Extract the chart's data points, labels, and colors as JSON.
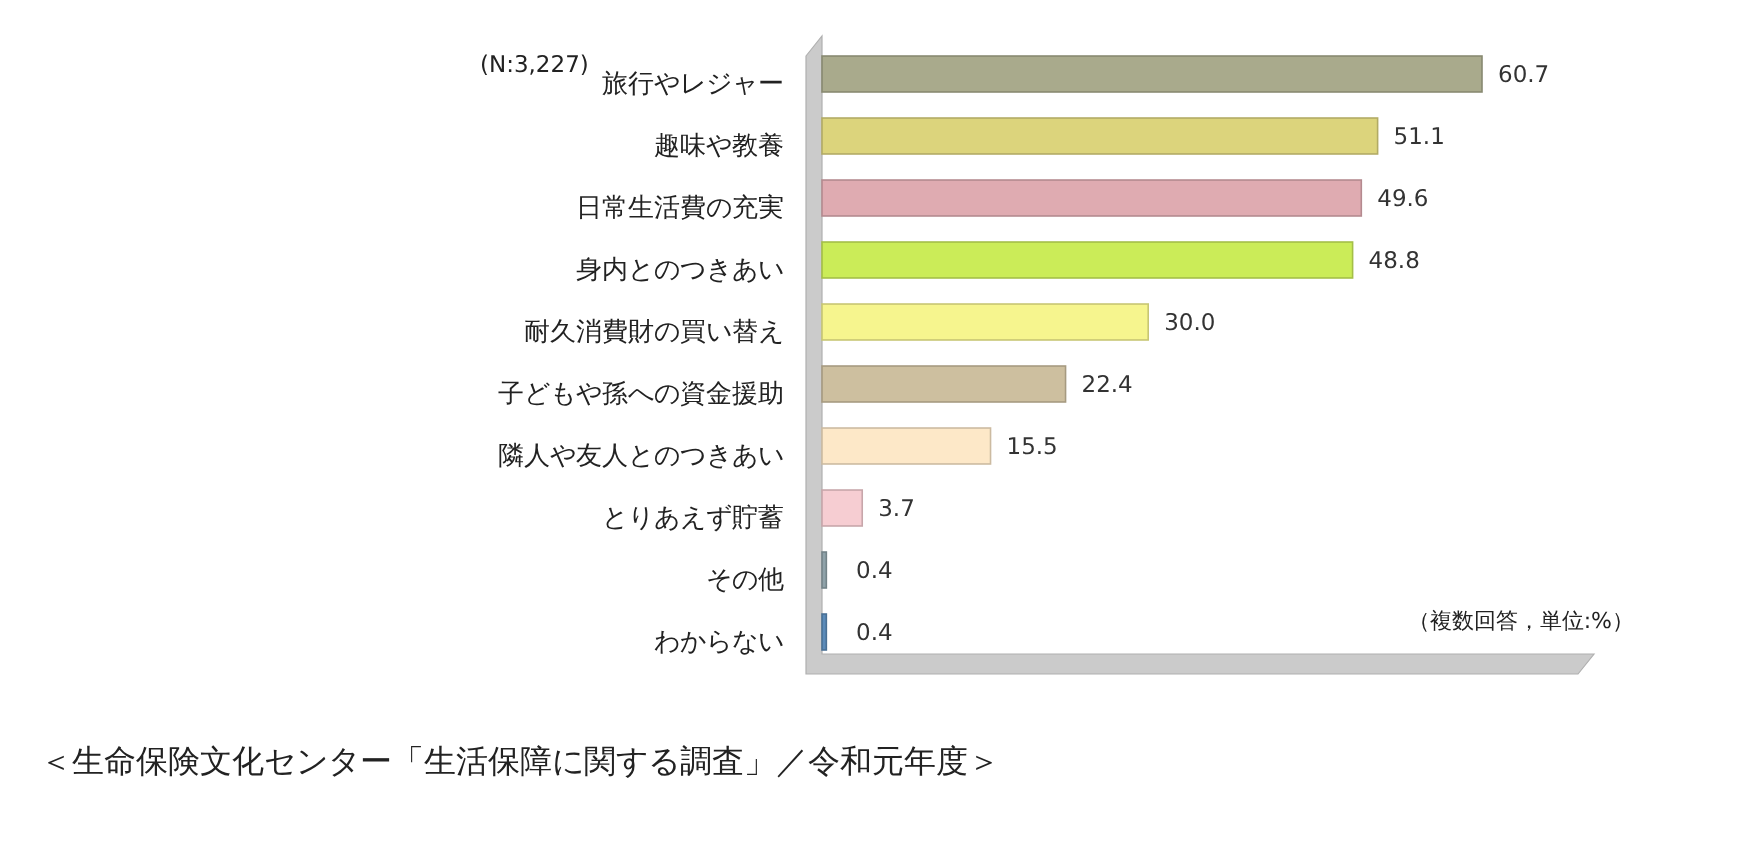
{
  "chart_data": {
    "type": "bar",
    "orientation": "horizontal",
    "categories": [
      "旅行やレジャー",
      "趣味や教養",
      "日常生活費の充実",
      "身内とのつきあい",
      "耐久消費財の買い替え",
      "子どもや孫への資金援助",
      "隣人や友人とのつきあい",
      "とりあえず貯蓄",
      "その他",
      "わからない"
    ],
    "values": [
      60.7,
      51.1,
      49.6,
      48.8,
      30.0,
      22.4,
      15.5,
      3.7,
      0.4,
      0.4
    ],
    "colors": [
      "#a9aa8c",
      "#dcd47c",
      "#dfabb1",
      "#cbec58",
      "#f6f58e",
      "#cdbf9f",
      "#fde8c8",
      "#f6cdd2",
      "#8fa2a9",
      "#5b8bb9"
    ],
    "value_labels": [
      "60.7",
      "51.1",
      "49.6",
      "48.8",
      "30.0",
      "22.4",
      "15.5",
      "3.7",
      "0.4",
      "0.4"
    ],
    "tick_labels": "y",
    "annotations": [
      "(N:3,227)",
      "（複数回答，単位:%）",
      "＜生命保険文化センター「生活保障に関する調査」／令和元年度＞"
    ]
  }
}
